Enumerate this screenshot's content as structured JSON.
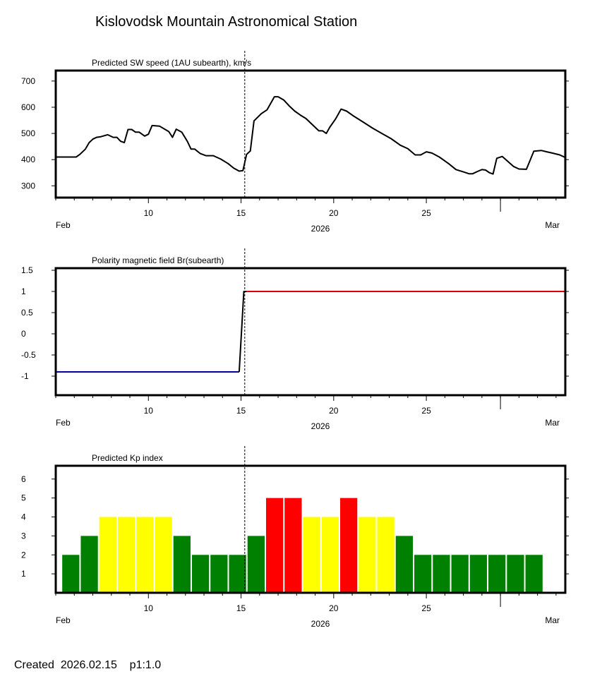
{
  "page": {
    "title": "Kislovodsk Mountain Astronomical Station",
    "created_label": "Created",
    "created_date": "2026.02.15",
    "version": "p1:1.0"
  },
  "chart_data": [
    {
      "type": "line",
      "title": "Predicted SW speed (1AU subearth), km/s",
      "xlabel": "2026",
      "x_unit": "days since Feb 1, 2026",
      "xlim": [
        5,
        32.5
      ],
      "x_ticks": [
        10,
        15,
        20,
        25
      ],
      "x_tick_labels": [
        "10",
        "15",
        "20",
        "25"
      ],
      "x_edge_labels": [
        "Feb",
        "Mar"
      ],
      "month_boundary": 29,
      "ylim": [
        255,
        740
      ],
      "y_ticks": [
        300,
        400,
        500,
        600,
        700
      ],
      "y_tick_labels": [
        "300",
        "400",
        "500",
        "600",
        "700"
      ],
      "current_time": 15.2,
      "series": [
        {
          "name": "SW speed",
          "color": "#000000",
          "x": [
            5.0,
            6.1,
            6.3,
            6.6,
            6.8,
            7.0,
            7.2,
            7.4,
            7.8,
            8.1,
            8.3,
            8.5,
            8.7,
            8.9,
            9.1,
            9.3,
            9.5,
            9.8,
            10.0,
            10.2,
            10.6,
            11.1,
            11.3,
            11.5,
            11.8,
            12.1,
            12.3,
            12.5,
            12.8,
            13.1,
            13.5,
            13.9,
            14.3,
            14.6,
            14.9,
            15.1,
            15.3,
            15.5,
            15.7,
            16.1,
            16.4,
            16.6,
            16.8,
            17.0,
            17.3,
            17.6,
            17.9,
            18.2,
            18.5,
            18.9,
            19.2,
            19.4,
            19.6,
            19.8,
            20.1,
            20.4,
            20.7,
            21.1,
            21.6,
            22.1,
            22.6,
            23.1,
            23.6,
            24.0,
            24.4,
            24.7,
            25.0,
            25.3,
            25.7,
            26.2,
            26.6,
            27.0,
            27.3,
            27.5,
            27.8,
            28.0,
            28.2,
            28.4,
            28.6,
            28.8,
            29.1,
            29.4,
            29.7,
            30.0,
            30.4,
            30.8,
            31.2,
            31.5,
            31.8,
            32.2,
            32.5
          ],
          "y": [
            410,
            410,
            420,
            440,
            465,
            478,
            485,
            487,
            495,
            485,
            485,
            470,
            465,
            515,
            515,
            505,
            505,
            490,
            497,
            530,
            528,
            507,
            485,
            516,
            505,
            470,
            440,
            440,
            423,
            415,
            415,
            402,
            385,
            368,
            356,
            358,
            420,
            433,
            548,
            576,
            590,
            615,
            640,
            640,
            628,
            605,
            585,
            570,
            557,
            530,
            510,
            510,
            500,
            525,
            555,
            593,
            585,
            565,
            543,
            520,
            500,
            480,
            455,
            442,
            418,
            418,
            430,
            425,
            410,
            385,
            362,
            353,
            346,
            346,
            356,
            362,
            360,
            350,
            345,
            405,
            412,
            393,
            374,
            364,
            363,
            432,
            435,
            430,
            425,
            418,
            408
          ]
        }
      ]
    },
    {
      "type": "line",
      "title": "Polarity magnetic field  Br(subearth)",
      "xlabel": "2026",
      "x_unit": "days since Feb 1, 2026",
      "xlim": [
        5,
        32.5
      ],
      "x_ticks": [
        10,
        15,
        20,
        25
      ],
      "x_tick_labels": [
        "10",
        "15",
        "20",
        "25"
      ],
      "x_edge_labels": [
        "Feb",
        "Mar"
      ],
      "month_boundary": 29,
      "ylim": [
        -1.45,
        1.55
      ],
      "y_ticks": [
        -1,
        -0.5,
        0,
        0.5,
        1,
        1.5
      ],
      "y_tick_labels": [
        "-1",
        "-0.5",
        "0",
        "0.5",
        "1",
        "1.5"
      ],
      "current_time": 15.2,
      "series": [
        {
          "name": "negative polarity",
          "color": "#0000a0",
          "x": [
            5.0,
            14.9
          ],
          "y": [
            -0.9,
            -0.9
          ]
        },
        {
          "name": "transition",
          "color": "#000000",
          "x": [
            14.9,
            15.15,
            15.3
          ],
          "y": [
            -0.9,
            1.0,
            1.0
          ]
        },
        {
          "name": "positive polarity",
          "color": "#e00000",
          "x": [
            15.3,
            32.5
          ],
          "y": [
            1.0,
            1.0
          ]
        }
      ]
    },
    {
      "type": "bar",
      "title": "Predicted Kp index",
      "xlabel": "2026",
      "x_unit": "days since Feb 1, 2026",
      "xlim": [
        5,
        32.5
      ],
      "x_ticks": [
        10,
        15,
        20,
        25
      ],
      "x_tick_labels": [
        "10",
        "15",
        "20",
        "25"
      ],
      "x_edge_labels": [
        "Feb",
        "Mar"
      ],
      "month_boundary": 29,
      "ylim": [
        0,
        6.7
      ],
      "y_ticks": [
        1,
        2,
        3,
        4,
        5,
        6
      ],
      "y_tick_labels": [
        "1",
        "2",
        "3",
        "4",
        "5",
        "6"
      ],
      "current_time": 15.2,
      "bar_start": 5.35,
      "bar_width": 1.0,
      "values": [
        2,
        3,
        4,
        4,
        4,
        4,
        3,
        2,
        2,
        2,
        3,
        5,
        5,
        4,
        4,
        5,
        4,
        4,
        3,
        2,
        2,
        2,
        2,
        2,
        2,
        2
      ],
      "color_scale": [
        {
          "max": 3,
          "color": "#008000"
        },
        {
          "max": 4,
          "color": "#ffff00"
        },
        {
          "max": 9,
          "color": "#ff0000"
        }
      ]
    }
  ]
}
